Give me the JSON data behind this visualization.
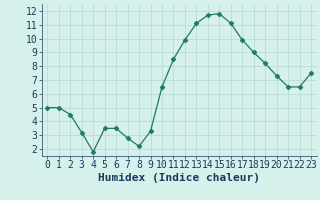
{
  "x": [
    0,
    1,
    2,
    3,
    4,
    5,
    6,
    7,
    8,
    9,
    10,
    11,
    12,
    13,
    14,
    15,
    16,
    17,
    18,
    19,
    20,
    21,
    22,
    23
  ],
  "y": [
    5.0,
    5.0,
    4.5,
    3.2,
    1.8,
    3.5,
    3.5,
    2.8,
    2.2,
    3.3,
    6.5,
    8.5,
    9.9,
    11.1,
    11.7,
    11.8,
    11.1,
    9.9,
    9.0,
    8.2,
    7.3,
    6.5,
    6.5,
    7.5
  ],
  "xlabel": "Humidex (Indice chaleur)",
  "xlim": [
    -0.5,
    23.5
  ],
  "ylim": [
    1.5,
    12.5
  ],
  "yticks": [
    2,
    3,
    4,
    5,
    6,
    7,
    8,
    9,
    10,
    11,
    12
  ],
  "xticks": [
    0,
    1,
    2,
    3,
    4,
    5,
    6,
    7,
    8,
    9,
    10,
    11,
    12,
    13,
    14,
    15,
    16,
    17,
    18,
    19,
    20,
    21,
    22,
    23
  ],
  "line_color": "#1f7a65",
  "marker": "D",
  "marker_size": 2.5,
  "bg_color": "#d6f0ec",
  "grid_color": "#b8dcd8",
  "xlabel_color": "#1a3a5c",
  "xlabel_fontsize": 8,
  "tick_fontsize": 7
}
